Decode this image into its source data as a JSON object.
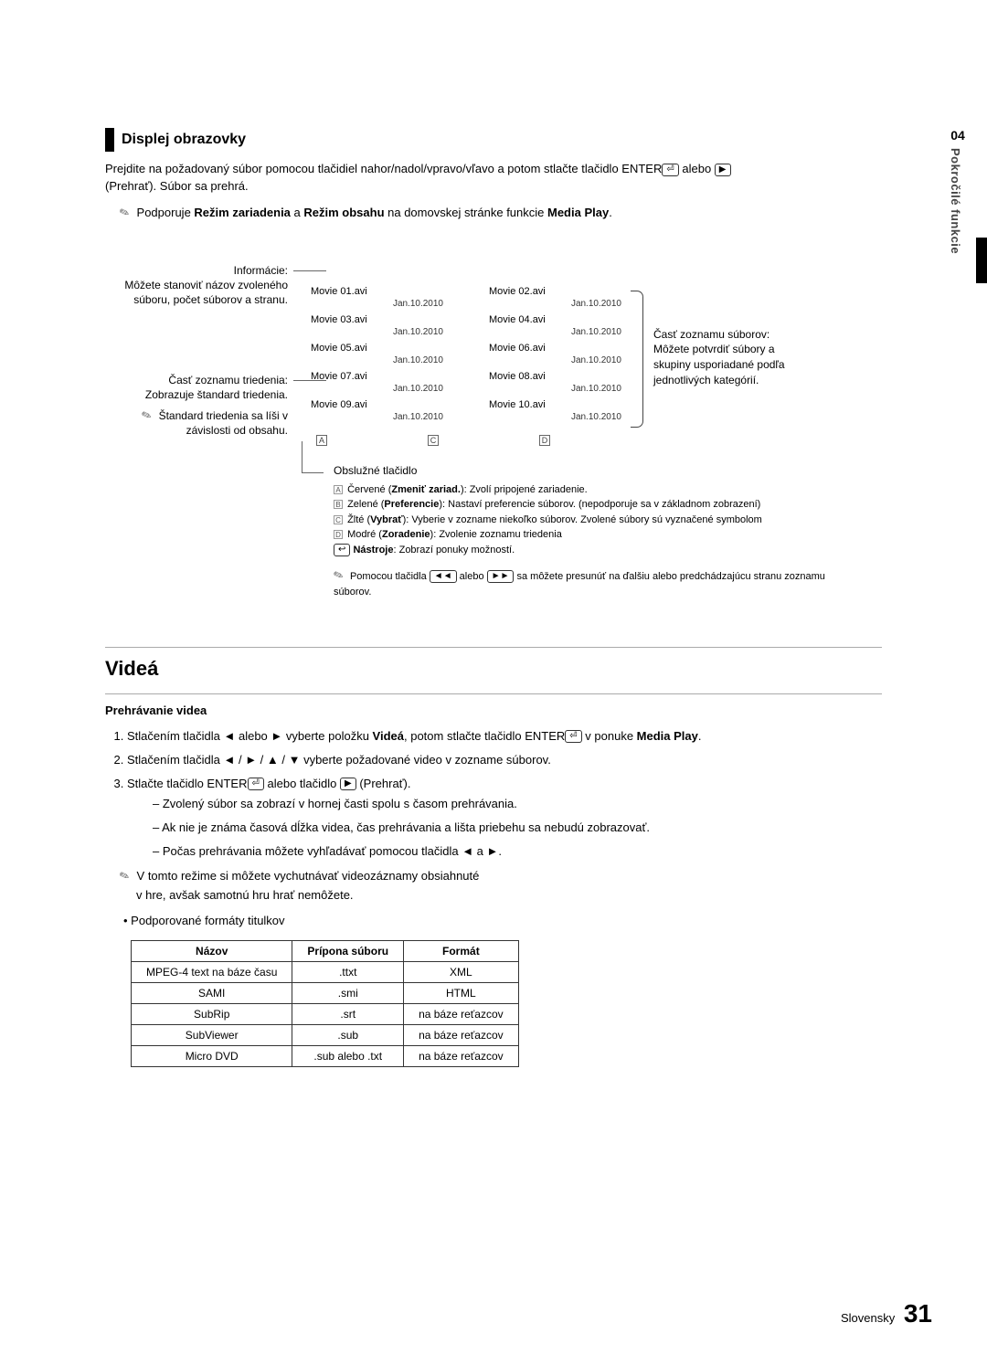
{
  "sideTab": {
    "chapter": "04",
    "title": "Pokročilé funkcie"
  },
  "section1": {
    "title": "Displej obrazovky",
    "intro1": "Prejdite na požadovaný súbor pomocou tlačidiel nahor/nadol/vpravo/vľavo a potom stlačte tlačidlo ENTER",
    "intro2": " alebo ",
    "intro3": "(Prehrať). Súbor sa prehrá.",
    "note_prefix": "Podporuje ",
    "note_b1": "Režim zariadenia",
    "note_mid": " a ",
    "note_b2": "Režim obsahu",
    "note_suffix": " na domovskej stránke funkcie ",
    "note_b3": "Media Play",
    "note_end": "."
  },
  "diagram": {
    "info_hdr": "Informácie:",
    "info_body": "Môžete stanoviť názov zvoleného súboru, počet súborov a stranu.",
    "sort_hdr": "Časť zoznamu triedenia:",
    "sort_body": "Zobrazuje štandard triedenia.",
    "sort_note": "Štandard triedenia sa líši v závislosti od obsahu.",
    "files": [
      {
        "name": "Movie 01.avi",
        "date": "Jan.10.2010"
      },
      {
        "name": "Movie 02.avi",
        "date": "Jan.10.2010"
      },
      {
        "name": "Movie 03.avi",
        "date": "Jan.10.2010"
      },
      {
        "name": "Movie 04.avi",
        "date": "Jan.10.2010"
      },
      {
        "name": "Movie 05.avi",
        "date": "Jan.10.2010"
      },
      {
        "name": "Movie 06.avi",
        "date": "Jan.10.2010"
      },
      {
        "name": "Movie 07.avi",
        "date": "Jan.10.2010"
      },
      {
        "name": "Movie 08.avi",
        "date": "Jan.10.2010"
      },
      {
        "name": "Movie 09.avi",
        "date": "Jan.10.2010"
      },
      {
        "name": "Movie 10.avi",
        "date": "Jan.10.2010"
      }
    ],
    "ctrl_letters": [
      "A",
      "C",
      "D"
    ],
    "file_section_hdr": "Časť zoznamu súborov:",
    "file_section_body": "Môžete potvrdiť súbory a skupiny usporiadané podľa jednotlivých kategórií.",
    "ctrl_title": "Obslužné tlačidlo",
    "red": {
      "label": "A",
      "name": "Zmeniť zariad.",
      "prefix": "Červené (",
      "suffix": "): Zvolí pripojené zariadenie."
    },
    "green": {
      "label": "B",
      "name": "Preferencie",
      "prefix": "Zelené (",
      "suffix": "): Nastaví preferencie súborov. (nepodporuje sa v základnom zobrazení)"
    },
    "yellow": {
      "label": "C",
      "name": "Vybrať",
      "prefix": "Žlté (",
      "suffix": "): Vyberie v zozname niekoľko súborov. Zvolené súbory sú vyznačené symbolom"
    },
    "blue": {
      "label": "D",
      "name": "Zoradenie",
      "prefix": "Modré (",
      "suffix": "): Zvolenie zoznamu triedenia"
    },
    "tools": {
      "name": "Nástroje",
      "body": ": Zobrazí ponuky možností."
    },
    "nav_note_1": "Pomocou tlačidla ",
    "nav_note_2": " alebo ",
    "nav_note_3": " sa môžete presunúť na ďalšiu alebo predchádzajúcu stranu zoznamu súborov."
  },
  "section2": {
    "title": "Videá",
    "subhead": "Prehrávanie videa",
    "step1_a": "Stlačením tlačidla ◄ alebo ► vyberte položku ",
    "step1_b": "Videá",
    "step1_c": ", potom stlačte tlačidlo ENTER",
    "step1_d": " v ponuke ",
    "step1_e": "Media Play",
    "step1_f": ".",
    "step2": "Stlačením tlačidla ◄ / ► / ▲ / ▼ vyberte požadované video v zozname súborov.",
    "step3_a": "Stlačte tlačidlo ENTER",
    "step3_b": " alebo tlačidlo ",
    "step3_c": " (Prehrať).",
    "dash1": "Zvolený súbor sa zobrazí v hornej časti spolu s časom prehrávania.",
    "dash2": "Ak nie je známa časová dĺžka videa, čas prehrávania a lišta priebehu sa nebudú zobrazovať.",
    "dash3": "Počas prehrávania môžete vyhľadávať pomocou tlačidla ◄ a ►.",
    "note4a": "V tomto režime si môžete vychutnávať videozáznamy obsiahnuté",
    "note4b": "v hre, avšak samotnú hru hrať nemôžete.",
    "bullet": "Podporované formáty titulkov",
    "table": {
      "cols": [
        "Názov",
        "Prípona súboru",
        "Formát"
      ],
      "rows": [
        [
          "MPEG-4 text na báze času",
          ".ttxt",
          "XML"
        ],
        [
          "SAMI",
          ".smi",
          "HTML"
        ],
        [
          "SubRip",
          ".srt",
          "na báze reťazcov"
        ],
        [
          "SubViewer",
          ".sub",
          "na báze reťazcov"
        ],
        [
          "Micro DVD",
          ".sub alebo .txt",
          "na báze reťazcov"
        ]
      ]
    }
  },
  "footer": {
    "lang": "Slovensky",
    "page": "31"
  }
}
